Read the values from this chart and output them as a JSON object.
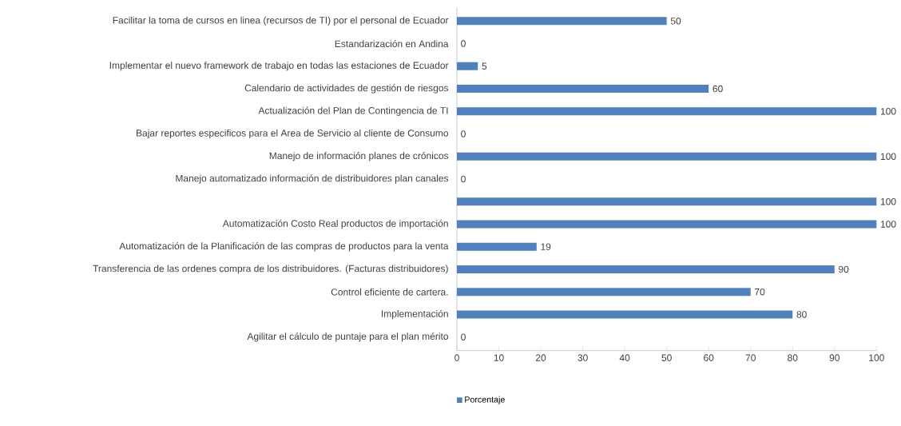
{
  "chart_data": {
    "type": "bar",
    "orientation": "horizontal",
    "categories": [
      "Facilitar la toma de cursos en linea (recursos de TI) por el personal de Ecuador",
      "Estandarización en Andina",
      "Implementar el nuevo framework de trabajo en todas las estaciones de Ecuador",
      "Calendario de actividades de gestión de riesgos",
      "Actualización del Plan de Contingencia de TI",
      "Bajar reportes especificos para el Area de Servicio al cliente de Consumo",
      "Manejo de información planes de crónicos",
      "Manejo automatizado información de distribuidores plan canales",
      null,
      "Automatización Costo Real productos de importación",
      "Automatización de la Planificación de las compras de productos para la venta",
      "Transferencia de las ordenes compra de los distribuidores. (Facturas distribuidores)",
      "Control eficiente de cartera.",
      "Implementación",
      "Agilitar el cálculo de puntaje para el plan mérito"
    ],
    "series": [
      {
        "name": "Porcentaje",
        "color": "#4f81bd",
        "values": [
          50,
          0,
          5,
          60,
          100,
          0,
          100,
          0,
          100,
          100,
          19,
          90,
          70,
          80,
          0
        ]
      }
    ],
    "xlim": [
      0,
      100
    ],
    "xticks": [
      0,
      10,
      20,
      30,
      40,
      50,
      60,
      70,
      80,
      90,
      100
    ],
    "data_labels": true,
    "legend": "bottom",
    "grid": false
  }
}
